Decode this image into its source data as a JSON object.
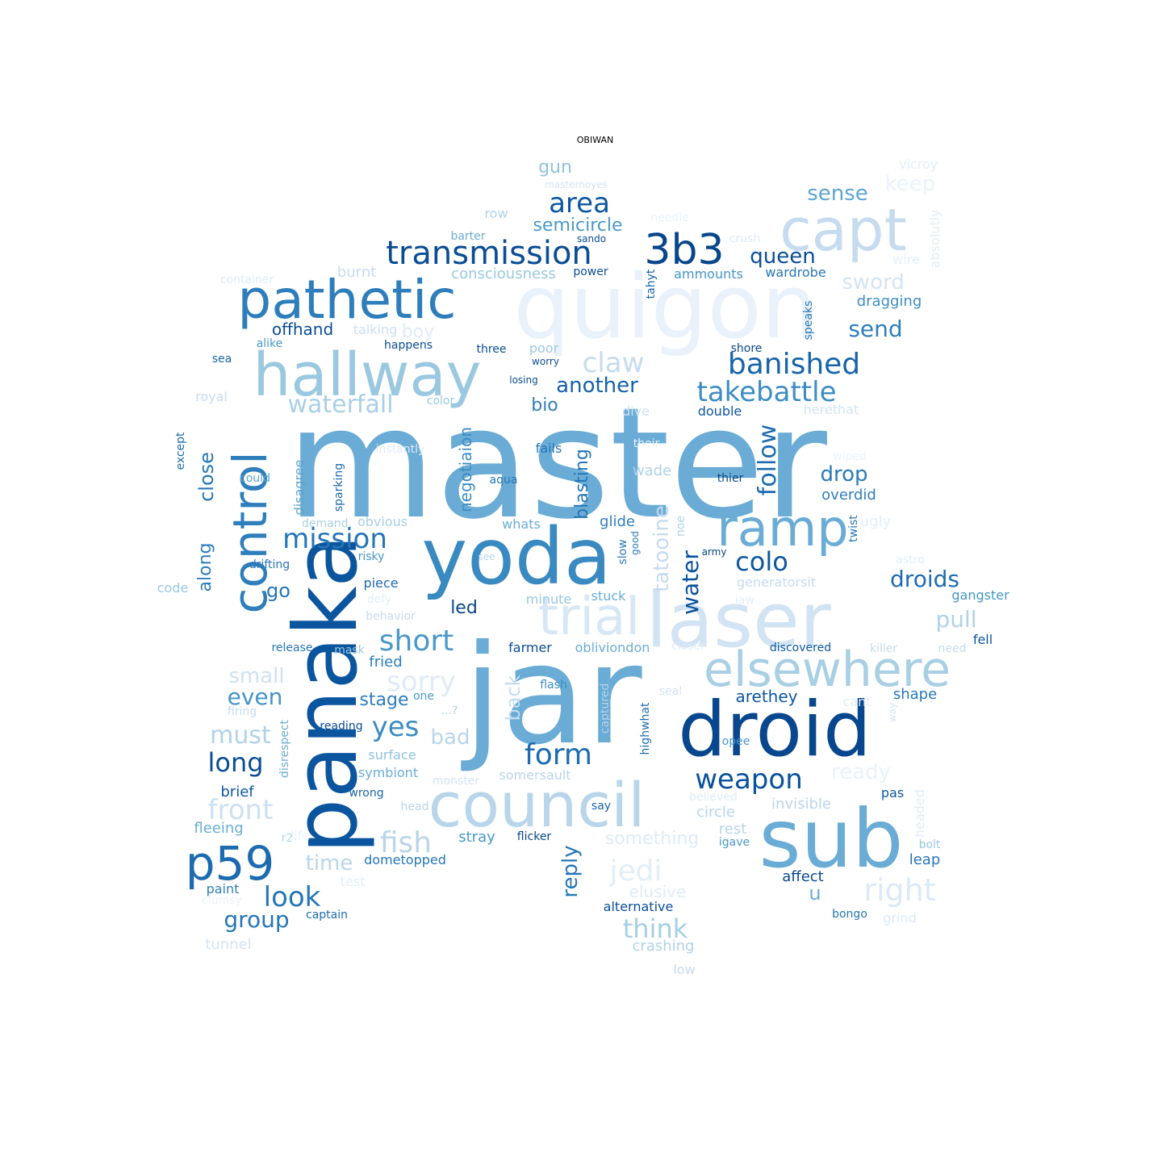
{
  "title": "OBIWAN",
  "words": [
    [
      "master",
      "#6aacd5",
      0
    ],
    [
      "jar",
      "#6aacd5",
      0
    ],
    [
      "quigon",
      "#e9f2fb",
      0
    ],
    [
      "panaka",
      "#0b559f",
      1
    ],
    [
      "yoda",
      "#3a8ac2",
      0
    ],
    [
      "droid",
      "#08478d",
      0
    ],
    [
      "sub",
      "#6aacd5",
      0
    ],
    [
      "laser",
      "#d2e3f3",
      0
    ],
    [
      "council",
      "#b9d5ea",
      0
    ],
    [
      "capt",
      "#c6dbef",
      0
    ],
    [
      "hallway",
      "#9ac8e0",
      0
    ],
    [
      "elsewhere",
      "#a9cfe5",
      0
    ],
    [
      "pathetic",
      "#2e7ebc",
      0
    ],
    [
      "control",
      "#2e7ebc",
      1
    ],
    [
      "trial",
      "#d8e7f5",
      0
    ],
    [
      "ramp",
      "#6aacd5",
      0
    ],
    [
      "3b3",
      "#08468b",
      0
    ],
    [
      "p59",
      "#1c6bb0",
      0
    ],
    [
      "transmission",
      "#0a4d95",
      0
    ],
    [
      "area",
      "#0d57a1",
      0
    ],
    [
      "banished",
      "#1764ab",
      0
    ],
    [
      "takebattle",
      "#3d8dc3",
      0
    ],
    [
      "claw",
      "#c6dbef",
      0
    ],
    [
      "mission",
      "#2575b7",
      0
    ],
    [
      "waterfall",
      "#a9cfe5",
      0
    ],
    [
      "another",
      "#1561a9",
      0
    ],
    [
      "short",
      "#4a98c9",
      0
    ],
    [
      "colo",
      "#0d57a1",
      0
    ],
    [
      "weapon",
      "#08519c",
      0
    ],
    [
      "form",
      "#1c6bb0",
      0
    ],
    [
      "look",
      "#2676b8",
      0
    ],
    [
      "long",
      "#0a4d95",
      0
    ],
    [
      "droids",
      "#1c6bb0",
      0
    ],
    [
      "pull",
      "#b0d2e7",
      0
    ],
    [
      "right",
      "#dceaf6",
      0
    ],
    [
      "sorry",
      "#dfebf7",
      0
    ],
    [
      "jedi",
      "#e3eef8",
      0
    ],
    [
      "fish",
      "#b9d5ea",
      0
    ],
    [
      "front",
      "#cde0f1",
      0
    ],
    [
      "yes",
      "#3c8cc3",
      0
    ],
    [
      "must",
      "#b0d2e7",
      0
    ],
    [
      "think",
      "#a6cee4",
      0
    ],
    [
      "group",
      "#2575b7",
      0
    ],
    [
      "time",
      "#b9d5ea",
      0
    ],
    [
      "sense",
      "#5da5d1",
      0
    ],
    [
      "queen",
      "#0a4d95",
      0
    ],
    [
      "semicircle",
      "#4a98c9",
      0
    ],
    [
      "keep",
      "#eaf3fb",
      0
    ],
    [
      "sword",
      "#d4e4f4",
      0
    ],
    [
      "send",
      "#2e7ebc",
      0
    ],
    [
      "gun",
      "#8fc1de",
      0
    ],
    [
      "drop",
      "#2a7ab9",
      0
    ],
    [
      "ready",
      "#e9f2fb",
      0
    ],
    [
      "small",
      "#cfe1f2",
      0
    ],
    [
      "even",
      "#4594c7",
      0
    ],
    [
      "bad",
      "#b9d5ea",
      0
    ],
    [
      "stage",
      "#2e7ebc",
      0
    ],
    [
      "bio",
      "#2e7ebc",
      0
    ],
    [
      "offhand",
      "#0a4d95",
      0
    ],
    [
      "go",
      "#2575b7",
      0
    ],
    [
      "led",
      "#08468b",
      0
    ],
    [
      "arethey",
      "#0d57a1",
      0
    ],
    [
      "u",
      "#6aacd5",
      0
    ],
    [
      "follow",
      "#1c6bb0",
      1
    ],
    [
      "tatooine",
      "#c6dbef",
      1
    ],
    [
      "water",
      "#08519c",
      1
    ],
    [
      "along",
      "#2e7ebc",
      1
    ],
    [
      "close",
      "#2676b8",
      1
    ],
    [
      "back",
      "#c6dbef",
      1
    ],
    [
      "reply",
      "#2676b8",
      1
    ],
    [
      "blasting",
      "#2575b7",
      1
    ],
    [
      "negotiaion",
      "#3d8dc3",
      1
    ],
    [
      "overdid",
      "#2e7ebc",
      0
    ],
    [
      "dragging",
      "#3d8dc3",
      0
    ],
    [
      "boy",
      "#dfebf7",
      0
    ],
    [
      "elusive",
      "#dfebf7",
      0
    ],
    [
      "crashing",
      "#b0d2e7",
      0
    ],
    [
      "something",
      "#dfebf7",
      0
    ],
    [
      "brief",
      "#0d57a1",
      0
    ],
    [
      "shape",
      "#2676b8",
      0
    ],
    [
      "fried",
      "#2e7ebc",
      0
    ],
    [
      "invisible",
      "#b9d5ea",
      0
    ],
    [
      "circle",
      "#b9d5ea",
      0
    ],
    [
      "rest",
      "#b9d5ea",
      0
    ],
    [
      "fleeing",
      "#6aacd5",
      0
    ],
    [
      "affect",
      "#08468b",
      0
    ],
    [
      "leap",
      "#2676b8",
      0
    ],
    [
      "alternative",
      "#0a4d95",
      0
    ],
    [
      "wade",
      "#b0d2e7",
      0
    ],
    [
      "glide",
      "#2e7ebc",
      0
    ],
    [
      "consciousness",
      "#9ac8e0",
      0
    ],
    [
      "burnt",
      "#c6dbef",
      0
    ],
    [
      "row",
      "#b0d2e7",
      0
    ],
    [
      "barter",
      "#6aacd5",
      0
    ],
    [
      "sando",
      "#0a4d95",
      0
    ],
    [
      "crush",
      "#dceaf6",
      0
    ],
    [
      "wire",
      "#e3eef8",
      0
    ],
    [
      "power",
      "#0a4d95",
      0
    ],
    [
      "ammounts",
      "#4594c7",
      0
    ],
    [
      "wardrobe",
      "#2676b8",
      0
    ],
    [
      "talking",
      "#cde0f1",
      0
    ],
    [
      "happens",
      "#0a4d95",
      0
    ],
    [
      "three",
      "#0a4d95",
      0
    ],
    [
      "poor",
      "#9ac8e0",
      0
    ],
    [
      "worry",
      "#0a4d95",
      0
    ],
    [
      "shore",
      "#08468b",
      0
    ],
    [
      "alike",
      "#4a98c9",
      0
    ],
    [
      "sea",
      "#1764ab",
      0
    ],
    [
      "royal",
      "#c6dbef",
      0
    ],
    [
      "color",
      "#9ac8e0",
      0
    ],
    [
      "losing",
      "#0a4d95",
      0
    ],
    [
      "dive",
      "#cfe1f2",
      0
    ],
    [
      "double",
      "#0d57a1",
      0
    ],
    [
      "herethat",
      "#d4e4f4",
      0
    ],
    [
      "instantly",
      "#dfebf7",
      0
    ],
    [
      "fails",
      "#2676b8",
      0
    ],
    [
      "their",
      "#eaf3fb",
      0
    ],
    [
      "wiped",
      "#eaf3fb",
      0
    ],
    [
      "thier",
      "#08468b",
      0
    ],
    [
      "could",
      "#5da5d1",
      0
    ],
    [
      "aqua",
      "#2676b8",
      0
    ],
    [
      "obvious",
      "#a9cfe5",
      0
    ],
    [
      "whats",
      "#6aacd5",
      0
    ],
    [
      "demand.",
      "#a9cfe5",
      0
    ],
    [
      "ugly",
      "#e3eef8",
      0
    ],
    [
      "risky",
      "#4594c7",
      0
    ],
    [
      "see",
      "#b9d5ea",
      0
    ],
    [
      "army",
      "#08468b",
      0
    ],
    [
      "drifting",
      "#2676b8",
      0
    ],
    [
      "piece",
      "#1c6bb0",
      0
    ],
    [
      "minute",
      "#9ac8e0",
      0
    ],
    [
      "stuck",
      "#6aacd5",
      0
    ],
    [
      "generatorsit",
      "#c6dbef",
      0
    ],
    [
      "astro",
      "#e3eef8",
      0
    ],
    [
      "code",
      "#9ac8e0",
      0
    ],
    [
      "defy",
      "#e3eef8",
      0
    ],
    [
      "behavior",
      "#c6dbef",
      0
    ],
    [
      "jaw",
      "#e3eef8",
      0
    ],
    [
      "gangster",
      "#4594c7",
      0
    ],
    [
      "release",
      "#2676b8",
      0
    ],
    [
      "mask",
      "#9ac8e0",
      0
    ],
    [
      "farmer",
      "#0a4d95",
      0
    ],
    [
      "obliviondon",
      "#6aacd5",
      0
    ],
    [
      "closer",
      "#dfebf7",
      0
    ],
    [
      "discovered",
      "#0d57a1",
      0
    ],
    [
      "killer",
      "#c6dbef",
      0
    ],
    [
      "need",
      "#c6dbef",
      0
    ],
    [
      "fell",
      "#0d57a1",
      0
    ],
    [
      "flash",
      "#3d8dc3",
      0
    ],
    [
      "one",
      "#4a98c9",
      0
    ],
    [
      "...?",
      "#b0d2e7",
      0
    ],
    [
      "seal",
      "#d4e4f4",
      0
    ],
    [
      "cant",
      "#dfebf7",
      0
    ],
    [
      "firing",
      "#c6dbef",
      0
    ],
    [
      "reading",
      "#0a4d95",
      0
    ],
    [
      "opee",
      "#4a98c9",
      0
    ],
    [
      "surface",
      "#8fc1de",
      0
    ],
    [
      "symbiont",
      "#6aacd5",
      0
    ],
    [
      "somersault",
      "#b9d5ea",
      0
    ],
    [
      "monster",
      "#d4e4f4",
      0
    ],
    [
      "wrong",
      "#1764ab",
      0
    ],
    [
      "believed",
      "#dfebf7",
      0
    ],
    [
      "pas",
      "#0d57a1",
      0
    ],
    [
      "head",
      "#b9d5ea",
      0
    ],
    [
      "say",
      "#1764ab",
      0
    ],
    [
      "stray",
      "#4a98c9",
      0
    ],
    [
      "flicker",
      "#08468b",
      0
    ],
    [
      "igave",
      "#4a98c9",
      0
    ],
    [
      "bolt",
      "#9ac8e0",
      0
    ],
    [
      "dometopped",
      "#2676b8",
      0
    ],
    [
      "test",
      "#e3eef8",
      0
    ],
    [
      "life",
      "#eaf3fb",
      0
    ],
    [
      "r2",
      "#b9d5ea",
      0
    ],
    [
      "paint",
      "#2e7ebc",
      0
    ],
    [
      "clumsy",
      "#eaf3fb",
      0
    ],
    [
      "captain",
      "#1c6bb0",
      0
    ],
    [
      "bongo",
      "#2676b8",
      0
    ],
    [
      "grind",
      "#dceaf6",
      0
    ],
    [
      "tunnel",
      "#d4e4f4",
      0
    ],
    [
      "low",
      "#c6dbef",
      0
    ],
    [
      "vicroy",
      "#e3eef8",
      0
    ],
    [
      "masternoyes",
      "#d4e4f4",
      0
    ],
    [
      "needle",
      "#eaf3fb",
      0
    ],
    [
      "container",
      "#dfebf7",
      0
    ],
    [
      "absolutly",
      "#e3eef8",
      1
    ],
    [
      "tahyt",
      "#1764ab",
      1
    ],
    [
      "speaks",
      "#2676b8",
      1
    ],
    [
      "except",
      "#1c6bb0",
      1
    ],
    [
      "disagree",
      "#5da5d1",
      1
    ],
    [
      "sparking",
      "#1c6bb0",
      1
    ],
    [
      "noe",
      "#b0d2e7",
      1
    ],
    [
      "slow",
      "#2676b8",
      1
    ],
    [
      "good",
      "#2676b8",
      1
    ],
    [
      "twist",
      "#2676b8",
      1
    ],
    [
      "highwhat",
      "#1c6bb0",
      1
    ],
    [
      "captured",
      "#b0d2e7",
      1
    ],
    [
      "disrespect",
      "#6aacd5",
      1
    ],
    [
      "headed",
      "#dfebf7",
      1
    ],
    [
      "way",
      "#d4e4f4",
      1
    ]
  ]
}
